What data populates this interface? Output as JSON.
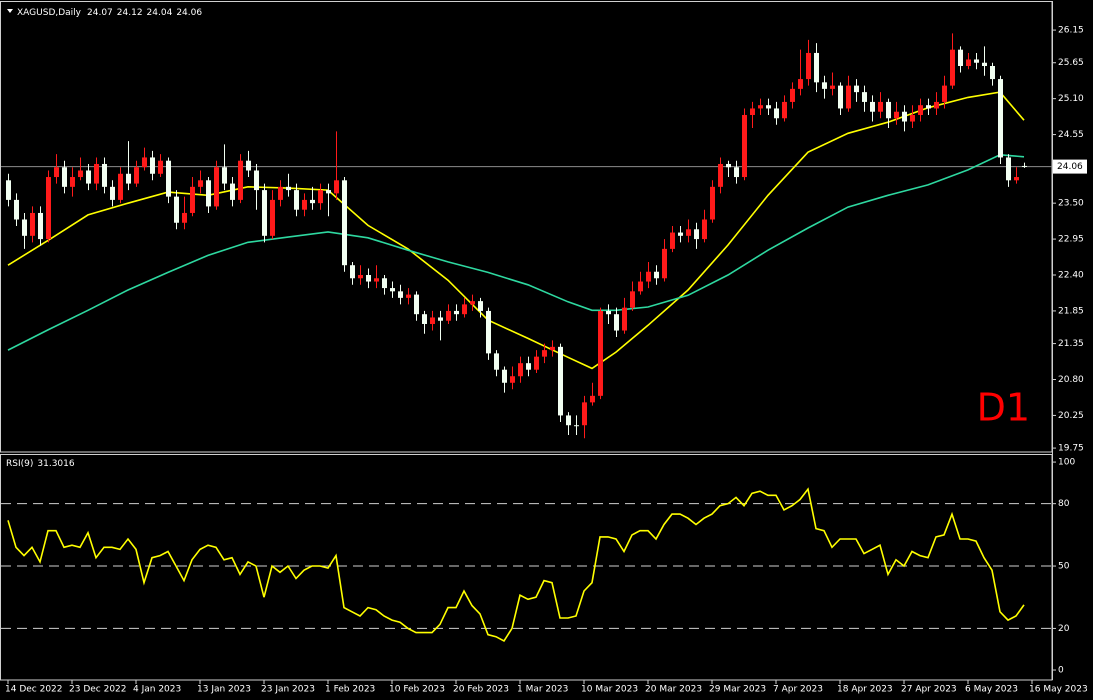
{
  "chart_data": [
    {
      "type": "candlestick",
      "title": "XAGUSD,Daily",
      "up_color": "#ff1a1a",
      "down_color": "#f2fff2",
      "annotation": "D1",
      "annotation_color": "#ff0000",
      "price_line_color": "#8c8c8c",
      "xlim": [
        -1,
        130.5
      ],
      "ylim": [
        19.69,
        26.58
      ],
      "yticks": [
        19.75,
        20.25,
        {
          "value": 20.8,
          "label": "20.80"
        },
        21.35,
        21.85,
        {
          "value": 22.4,
          "label": "22.40"
        },
        22.95,
        {
          "value": 23.5,
          "label": "23.50"
        },
        24.55,
        {
          "value": 25.1,
          "label": "25.10"
        },
        25.65,
        26.15
      ],
      "ohlc": [
        [
          23.85,
          23.95,
          23.45,
          23.55
        ],
        [
          23.55,
          23.65,
          23.15,
          23.25
        ],
        [
          23.25,
          23.35,
          22.8,
          23.0
        ],
        [
          23.0,
          23.45,
          22.9,
          23.35
        ],
        [
          23.35,
          23.45,
          22.85,
          22.95
        ],
        [
          22.95,
          24.0,
          22.9,
          23.9
        ],
        [
          23.9,
          24.25,
          23.8,
          24.05
        ],
        [
          24.05,
          24.15,
          23.65,
          23.75
        ],
        [
          23.75,
          24.05,
          23.6,
          23.9
        ],
        [
          23.9,
          24.2,
          23.85,
          24.0
        ],
        [
          24.0,
          24.1,
          23.7,
          23.8
        ],
        [
          23.8,
          24.2,
          23.7,
          24.1
        ],
        [
          24.1,
          24.2,
          23.65,
          23.75
        ],
        [
          23.75,
          23.85,
          23.45,
          23.55
        ],
        [
          23.55,
          24.05,
          23.5,
          23.95
        ],
        [
          23.95,
          24.45,
          23.7,
          23.8
        ],
        [
          23.8,
          24.15,
          23.75,
          24.05
        ],
        [
          24.05,
          24.35,
          24.0,
          24.2
        ],
        [
          24.2,
          24.3,
          23.85,
          23.95
        ],
        [
          23.95,
          24.25,
          23.9,
          24.15
        ],
        [
          24.15,
          24.2,
          23.5,
          23.6
        ],
        [
          23.6,
          23.7,
          23.1,
          23.2
        ],
        [
          23.2,
          23.6,
          23.1,
          23.35
        ],
        [
          23.35,
          23.9,
          23.3,
          23.75
        ],
        [
          23.75,
          24.0,
          23.65,
          23.85
        ],
        [
          23.85,
          23.9,
          23.35,
          23.45
        ],
        [
          23.45,
          24.15,
          23.4,
          24.05
        ],
        [
          24.05,
          24.4,
          23.7,
          23.8
        ],
        [
          23.8,
          23.9,
          23.45,
          23.55
        ],
        [
          23.55,
          24.25,
          23.5,
          24.15
        ],
        [
          24.15,
          24.3,
          23.9,
          24.0
        ],
        [
          24.0,
          24.1,
          23.4,
          23.7
        ],
        [
          23.7,
          23.8,
          22.9,
          23.0
        ],
        [
          23.0,
          23.7,
          22.95,
          23.55
        ],
        [
          23.55,
          23.85,
          23.45,
          23.75
        ],
        [
          23.75,
          23.95,
          23.6,
          23.7
        ],
        [
          23.7,
          23.8,
          23.3,
          23.4
        ],
        [
          23.4,
          23.65,
          23.3,
          23.55
        ],
        [
          23.55,
          23.75,
          23.4,
          23.5
        ],
        [
          23.5,
          23.8,
          23.4,
          23.7
        ],
        [
          23.7,
          23.8,
          23.3,
          23.65
        ],
        [
          23.65,
          24.6,
          23.55,
          23.85
        ],
        [
          23.85,
          23.9,
          22.45,
          22.55
        ],
        [
          22.55,
          22.6,
          22.25,
          22.35
        ],
        [
          22.35,
          22.55,
          22.25,
          22.4
        ],
        [
          22.4,
          22.5,
          22.2,
          22.3
        ],
        [
          22.3,
          22.55,
          22.2,
          22.35
        ],
        [
          22.35,
          22.4,
          22.1,
          22.2
        ],
        [
          22.2,
          22.3,
          22.05,
          22.15
        ],
        [
          22.15,
          22.25,
          21.95,
          22.05
        ],
        [
          22.05,
          22.2,
          21.95,
          22.1
        ],
        [
          22.1,
          22.15,
          21.7,
          21.8
        ],
        [
          21.8,
          21.85,
          21.5,
          21.65
        ],
        [
          21.65,
          21.85,
          21.55,
          21.75
        ],
        [
          21.75,
          21.85,
          21.4,
          21.7
        ],
        [
          21.7,
          21.95,
          21.65,
          21.85
        ],
        [
          21.85,
          21.95,
          21.7,
          21.8
        ],
        [
          21.8,
          22.05,
          21.75,
          21.95
        ],
        [
          21.95,
          22.1,
          21.85,
          22.0
        ],
        [
          22.0,
          22.05,
          21.75,
          21.85
        ],
        [
          21.85,
          21.9,
          21.1,
          21.2
        ],
        [
          21.2,
          21.25,
          20.85,
          20.95
        ],
        [
          20.95,
          21.0,
          20.6,
          20.75
        ],
        [
          20.75,
          21.0,
          20.65,
          20.85
        ],
        [
          20.85,
          21.15,
          20.75,
          21.05
        ],
        [
          21.05,
          21.15,
          20.85,
          20.95
        ],
        [
          20.95,
          21.25,
          20.9,
          21.15
        ],
        [
          21.15,
          21.35,
          21.05,
          21.25
        ],
        [
          21.25,
          21.4,
          21.15,
          21.3
        ],
        [
          21.3,
          21.35,
          20.15,
          20.25
        ],
        [
          20.25,
          20.3,
          19.95,
          20.1
        ],
        [
          20.1,
          20.25,
          19.95,
          20.1
        ],
        [
          20.1,
          20.55,
          19.9,
          20.45
        ],
        [
          20.45,
          20.75,
          20.4,
          20.55
        ],
        [
          20.55,
          21.9,
          20.5,
          21.85
        ],
        [
          21.85,
          21.95,
          21.65,
          21.8
        ],
        [
          21.8,
          21.9,
          21.45,
          21.55
        ],
        [
          21.55,
          22.05,
          21.5,
          21.9
        ],
        [
          21.9,
          22.3,
          21.85,
          22.15
        ],
        [
          22.15,
          22.45,
          22.1,
          22.3
        ],
        [
          22.3,
          22.6,
          22.2,
          22.45
        ],
        [
          22.45,
          22.55,
          22.25,
          22.35
        ],
        [
          22.35,
          22.95,
          22.3,
          22.8
        ],
        [
          22.8,
          23.15,
          22.75,
          23.05
        ],
        [
          23.05,
          23.15,
          22.9,
          23.0
        ],
        [
          23.0,
          23.25,
          22.9,
          23.1
        ],
        [
          23.1,
          23.2,
          22.8,
          22.95
        ],
        [
          22.95,
          23.4,
          22.9,
          23.25
        ],
        [
          23.25,
          23.85,
          23.2,
          23.75
        ],
        [
          23.75,
          24.2,
          23.65,
          24.1
        ],
        [
          24.1,
          24.15,
          23.9,
          24.05
        ],
        [
          24.05,
          24.15,
          23.8,
          23.9
        ],
        [
          23.9,
          24.95,
          23.85,
          24.85
        ],
        [
          24.85,
          25.05,
          24.65,
          24.95
        ],
        [
          24.95,
          25.1,
          24.85,
          25.0
        ],
        [
          25.0,
          25.1,
          24.85,
          24.95
        ],
        [
          24.95,
          25.05,
          24.7,
          24.8
        ],
        [
          24.8,
          25.15,
          24.75,
          25.05
        ],
        [
          25.05,
          25.35,
          24.95,
          25.25
        ],
        [
          25.25,
          25.85,
          25.15,
          25.4
        ],
        [
          25.4,
          26.0,
          25.3,
          25.8
        ],
        [
          25.8,
          25.95,
          25.2,
          25.35
        ],
        [
          25.35,
          25.45,
          25.1,
          25.25
        ],
        [
          25.25,
          25.5,
          25.15,
          25.3
        ],
        [
          25.3,
          25.35,
          24.85,
          24.95
        ],
        [
          24.95,
          25.45,
          24.9,
          25.3
        ],
        [
          25.3,
          25.4,
          25.05,
          25.2
        ],
        [
          25.2,
          25.3,
          24.9,
          25.05
        ],
        [
          25.05,
          25.15,
          24.75,
          24.9
        ],
        [
          24.9,
          25.2,
          24.8,
          25.05
        ],
        [
          25.05,
          25.1,
          24.65,
          24.8
        ],
        [
          24.8,
          25.05,
          24.7,
          24.9
        ],
        [
          24.9,
          25.0,
          24.6,
          24.75
        ],
        [
          24.75,
          25.0,
          24.65,
          24.85
        ],
        [
          24.85,
          25.1,
          24.75,
          25.0
        ],
        [
          25.0,
          25.1,
          24.85,
          24.95
        ],
        [
          24.95,
          25.2,
          24.85,
          25.05
        ],
        [
          25.05,
          25.45,
          24.95,
          25.3
        ],
        [
          25.3,
          26.1,
          25.25,
          25.85
        ],
        [
          25.85,
          25.9,
          25.5,
          25.6
        ],
        [
          25.6,
          25.8,
          25.55,
          25.7
        ],
        [
          25.7,
          25.8,
          25.55,
          25.65
        ],
        [
          25.65,
          25.9,
          25.45,
          25.6
        ],
        [
          25.6,
          25.65,
          25.3,
          25.4
        ],
        [
          25.4,
          25.45,
          24.1,
          24.2
        ],
        [
          24.2,
          24.25,
          23.75,
          23.85
        ],
        [
          23.85,
          24.05,
          23.8,
          23.9
        ],
        [
          24.07,
          24.12,
          24.04,
          24.06
        ]
      ],
      "lines": [
        {
          "color": "#ffff00",
          "x": [
            0,
            5,
            10,
            15,
            20,
            25,
            30,
            35,
            40,
            45,
            50,
            55,
            60,
            65,
            70,
            73,
            76,
            80,
            85,
            90,
            95,
            100,
            105,
            110,
            115,
            120,
            124,
            127
          ],
          "values": [
            22.55,
            22.93,
            23.32,
            23.5,
            23.67,
            23.62,
            23.75,
            23.73,
            23.7,
            23.16,
            22.8,
            22.32,
            21.71,
            21.43,
            21.14,
            20.97,
            21.22,
            21.63,
            22.17,
            22.86,
            23.62,
            24.28,
            24.57,
            24.74,
            24.96,
            25.12,
            25.2,
            24.77
          ]
        },
        {
          "color": "#2ed8a0",
          "x": [
            0,
            5,
            10,
            15,
            20,
            25,
            30,
            35,
            40,
            45,
            50,
            55,
            60,
            65,
            70,
            73,
            76,
            80,
            85,
            90,
            95,
            100,
            105,
            110,
            115,
            120,
            124,
            127
          ],
          "values": [
            21.25,
            21.56,
            21.86,
            22.17,
            22.44,
            22.7,
            22.9,
            22.98,
            23.06,
            22.97,
            22.78,
            22.6,
            22.44,
            22.25,
            21.99,
            21.86,
            21.86,
            21.91,
            22.09,
            22.4,
            22.78,
            23.12,
            23.44,
            23.62,
            23.78,
            24.01,
            24.24,
            24.21
          ]
        }
      ]
    },
    {
      "type": "line",
      "title": "RSI(9)",
      "color": "#ffff00",
      "xlim": [
        -1,
        130.5
      ],
      "ylim": [
        -4.8,
        103.4
      ],
      "yticks": [
        0,
        20,
        50,
        80,
        100
      ],
      "levels": [
        20,
        50,
        80
      ],
      "values": [
        72,
        59,
        55,
        59,
        52,
        67,
        67,
        59,
        60,
        59,
        66,
        54,
        59,
        59,
        58,
        63,
        58,
        42,
        54,
        55,
        57,
        50,
        43,
        53,
        58,
        60,
        59,
        53,
        54,
        46,
        52,
        50,
        35,
        50,
        47,
        50,
        44,
        48,
        50,
        50,
        49,
        55,
        30,
        28,
        26,
        30,
        29,
        26,
        24,
        23,
        20,
        18,
        18,
        18,
        22,
        30,
        30,
        38,
        31,
        27,
        17,
        16,
        14,
        20,
        36,
        34,
        35,
        43,
        42,
        25,
        25,
        26,
        38,
        42,
        64,
        64,
        63,
        57,
        65,
        67,
        67,
        63,
        70,
        75,
        75,
        73,
        70,
        73,
        75,
        79,
        80,
        83,
        79,
        85,
        86,
        84,
        84,
        77,
        79,
        82,
        87,
        68,
        67,
        59,
        63,
        63,
        63,
        56,
        58,
        60,
        46,
        53,
        50,
        57,
        55,
        54,
        64,
        65,
        75,
        63,
        63,
        62,
        54,
        48,
        28,
        24,
        26,
        31.3016
      ],
      "xticks": [
        {
          "value": 0,
          "label": "14 Dec 2022"
        },
        {
          "value": 8,
          "label": "23 Dec 2022"
        },
        {
          "value": 16,
          "label": "4 Jan 2023"
        },
        {
          "value": 24,
          "label": "13 Jan 2023"
        },
        {
          "value": 32,
          "label": "23 Jan 2023"
        },
        {
          "value": 40,
          "label": "1 Feb 2023"
        },
        {
          "value": 48,
          "label": "10 Feb 2023"
        },
        {
          "value": 56,
          "label": "20 Feb 2023"
        },
        {
          "value": 64,
          "label": "1 Mar 2023"
        },
        {
          "value": 72,
          "label": "10 Mar 2023"
        },
        {
          "value": 80,
          "label": "20 Mar 2023"
        },
        {
          "value": 88,
          "label": "29 Mar 2023"
        },
        {
          "value": 96,
          "label": "7 Apr 2023"
        },
        {
          "value": 104,
          "label": "18 Apr 2023"
        },
        {
          "value": 112,
          "label": "27 Apr 2023"
        },
        {
          "value": 120,
          "label": "6 May 2023"
        },
        {
          "value": 128,
          "label": "16 May 2023"
        }
      ]
    }
  ]
}
